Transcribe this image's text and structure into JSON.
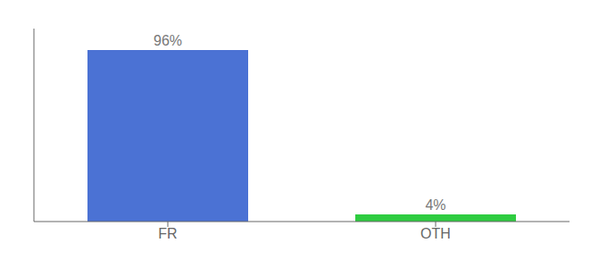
{
  "chart_data": {
    "type": "bar",
    "categories": [
      "FR",
      "OTH"
    ],
    "values": [
      96,
      4
    ],
    "value_labels": [
      "96%",
      "4%"
    ],
    "data_labels": true,
    "colors": [
      "#4b72d4",
      "#2ecc40"
    ],
    "ylim": [
      0,
      108
    ],
    "tick_labels": "x"
  }
}
